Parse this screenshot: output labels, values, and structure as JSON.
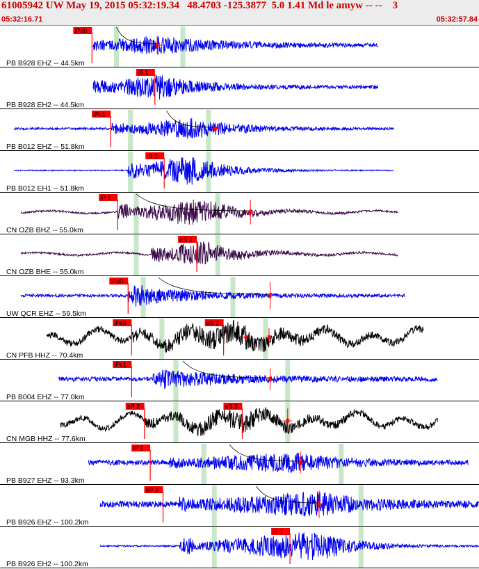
{
  "header": {
    "title": "61005942 UW May 19, 2015 05:32:19.34   48.4703 -125.3877  5.0 1.41 Md le amyw -- --    3",
    "start_time": "05:32:16.71",
    "end_time": "05:32:57.84"
  },
  "colors": {
    "header_bg": "#ececec",
    "header_text": "#cc0000",
    "pick_box": "#ff0000",
    "pick_text": "#000000",
    "window_band": "#c8e6c8",
    "trace_blue": "#0000ee",
    "trace_black": "#000000",
    "trace_purple": "#3a0a4a",
    "separator": "#000000"
  },
  "chart_data": {
    "type": "line",
    "title": "61005942 UW May 19, 2015 05:32:19.34   48.4703 -125.3877  5.0 1.41 Md le amyw -- --    3",
    "x_unit": "time",
    "x_range": [
      "05:32:16.71",
      "05:32:57.84"
    ],
    "window_s": 41.13,
    "ylabel": "",
    "xlabel": "",
    "channels": [
      {
        "label": "PB B928 EHZ -- 44.5km",
        "color": "blue",
        "trace_range_s": [
          8.0,
          32.5
        ],
        "amp": 0.55,
        "noise": 0.1,
        "onset_s": 7.8,
        "peak_s": 13.5,
        "decay_s": 5.5,
        "picks": [
          {
            "label": "iPd0",
            "time_s": 7.9
          }
        ],
        "bands_s": [
          10.0,
          15.7
        ],
        "coda": {
          "start_s": 10.0,
          "end_s": 13.6
        },
        "marks": [
          {
            "time_s": 13.5,
            "size": 0.6
          }
        ]
      },
      {
        "label": "PB B928 EH2 -- 44.5km",
        "color": "blue",
        "trace_range_s": [
          8.0,
          32.5
        ],
        "amp": 0.7,
        "noise": 0.1,
        "onset_s": 8.0,
        "peak_s": 13.7,
        "decay_s": 3.5,
        "picks": [
          {
            "label": "iS 1",
            "time_s": 13.3
          }
        ],
        "bands_s": [],
        "coda": null,
        "marks": []
      },
      {
        "label": "PB B012 EHZ -- 51.8km",
        "color": "blue",
        "trace_range_s": [
          1.2,
          33.8
        ],
        "amp": 0.6,
        "noise": 0.06,
        "onset_s": 9.5,
        "peak_s": 16.5,
        "decay_s": 4.0,
        "picks": [
          {
            "label": "iPc1",
            "time_s": 9.5
          }
        ],
        "bands_s": [
          11.2,
          17.9
        ],
        "coda": {
          "start_s": 14.3,
          "end_s": 18.5
        },
        "marks": [
          {
            "time_s": 18.5,
            "size": 0.4
          }
        ]
      },
      {
        "label": "PB B012 EH1 -- 51.8km",
        "color": "blue",
        "trace_range_s": [
          1.2,
          33.8
        ],
        "amp": 0.85,
        "noise": 0.03,
        "onset_s": 11.0,
        "peak_s": 16.3,
        "decay_s": 3.0,
        "picks": [
          {
            "label": "iS 1",
            "time_s": 14.1
          }
        ],
        "bands_s": [
          11.2,
          17.9
        ],
        "coda": null,
        "marks": []
      },
      {
        "label": "CN OZB BHZ -- 55.0km",
        "color": "purple",
        "trace_range_s": [
          1.8,
          34.2
        ],
        "amp": 0.75,
        "noise": 0.05,
        "onset_s": 10.1,
        "peak_s": 17.2,
        "decay_s": 3.0,
        "picks": [
          {
            "label": "iP 1",
            "time_s": 10.1
          }
        ],
        "bands_s": [
          11.7,
          18.7
        ],
        "coda": {
          "start_s": 11.7,
          "end_s": 21.5
        },
        "marks": [
          {
            "time_s": 21.5,
            "size": 0.8
          }
        ]
      },
      {
        "label": "CN OZB BHE -- 55.0km",
        "color": "purple",
        "trace_range_s": [
          1.8,
          34.2
        ],
        "amp": 0.75,
        "noise": 0.05,
        "onset_s": 13.0,
        "peak_s": 17.3,
        "decay_s": 3.0,
        "picks": [
          {
            "label": "eS 2",
            "time_s": 16.9
          }
        ],
        "bands_s": [
          11.7,
          18.7
        ],
        "coda": null,
        "marks": []
      },
      {
        "label": "UW QCR EHZ -- 59.5km",
        "color": "blue",
        "trace_range_s": [
          1.8,
          34.8
        ],
        "amp": 0.65,
        "noise": 0.08,
        "onset_s": 11.0,
        "peak_s": 11.5,
        "decay_s": 5.0,
        "picks": [
          {
            "label": "iPd0",
            "time_s": 11.0
          }
        ],
        "bands_s": [
          12.3,
          20.0
        ],
        "coda": {
          "start_s": 13.6,
          "end_s": 23.2
        },
        "marks": [
          {
            "time_s": 23.2,
            "size": 0.9
          }
        ]
      },
      {
        "label": "CN PFB HHZ -- 70.4km",
        "color": "black",
        "trace_range_s": [
          4.0,
          36.4
        ],
        "amp": 0.65,
        "noise": 0.18,
        "onset_s": 11.3,
        "peak_s": 20.5,
        "decay_s": 4.0,
        "picks": [
          {
            "label": "iPc0",
            "time_s": 11.3
          },
          {
            "label": "eS 2",
            "time_s": 19.2
          }
        ],
        "bands_s": [
          13.9,
          22.8
        ],
        "coda": null,
        "marks": [
          {
            "time_s": 21.1,
            "size": 0.8
          },
          {
            "time_s": 23.1,
            "size": 0.6
          }
        ]
      },
      {
        "label": "PB B004 EHZ -- 77.0km",
        "color": "blue",
        "trace_range_s": [
          5.0,
          37.6
        ],
        "amp": 0.55,
        "noise": 0.12,
        "onset_s": 13.1,
        "peak_s": 14.0,
        "decay_s": 6.0,
        "picks": [
          {
            "label": "iPc1",
            "time_s": 11.3
          }
        ],
        "bands_s": [
          15.1,
          24.7
        ],
        "coda": {
          "start_s": 15.7,
          "end_s": 23.2
        },
        "marks": [
          {
            "time_s": 23.2,
            "size": 0.7
          }
        ]
      },
      {
        "label": "CN MGB HHZ -- 77.6km",
        "color": "black",
        "trace_range_s": [
          5.2,
          37.6
        ],
        "amp": 0.55,
        "noise": 0.15,
        "onset_s": 12.4,
        "peak_s": 21.0,
        "decay_s": 4.5,
        "picks": [
          {
            "label": "eP 2",
            "time_s": 12.4
          },
          {
            "label": "eS 2",
            "time_s": 20.8
          }
        ],
        "bands_s": [
          15.1,
          24.7
        ],
        "coda": null,
        "marks": [
          {
            "time_s": 24.7,
            "size": 0.8
          }
        ]
      },
      {
        "label": "PB B927 EHZ -- 93.3km",
        "color": "blue",
        "trace_range_s": [
          7.6,
          40.2
        ],
        "amp": 0.6,
        "noise": 0.14,
        "onset_s": 14.6,
        "peak_s": 25.6,
        "decay_s": 3.5,
        "picks": [
          {
            "label": "iP 1",
            "time_s": 12.9
          }
        ],
        "bands_s": [
          17.5,
          29.3
        ],
        "coda": {
          "start_s": 19.7,
          "end_s": 25.8
        },
        "marks": [
          {
            "time_s": 25.8,
            "size": 0.7
          }
        ]
      },
      {
        "label": "PB B926 EHZ -- 100.2km",
        "color": "blue",
        "trace_range_s": [
          8.6,
          41.13
        ],
        "amp": 0.75,
        "noise": 0.18,
        "onset_s": 15.4,
        "peak_s": 27.5,
        "decay_s": 4.0,
        "picks": [
          {
            "label": "eP 2",
            "time_s": 14.0
          }
        ],
        "bands_s": [
          18.4,
          31.0
        ],
        "coda": {
          "start_s": 22.0,
          "end_s": 27.4
        },
        "marks": [
          {
            "time_s": 27.4,
            "size": 0.9
          }
        ]
      },
      {
        "label": "PB B926 EH2 -- 100.2km",
        "color": "blue",
        "trace_range_s": [
          8.6,
          41.13
        ],
        "amp": 0.85,
        "noise": 0.04,
        "onset_s": 15.4,
        "peak_s": 27.5,
        "decay_s": 3.0,
        "picks": [
          {
            "label": "iS 1",
            "time_s": 24.9
          }
        ],
        "bands_s": [
          18.4,
          31.0
        ],
        "coda": null,
        "marks": []
      }
    ]
  }
}
